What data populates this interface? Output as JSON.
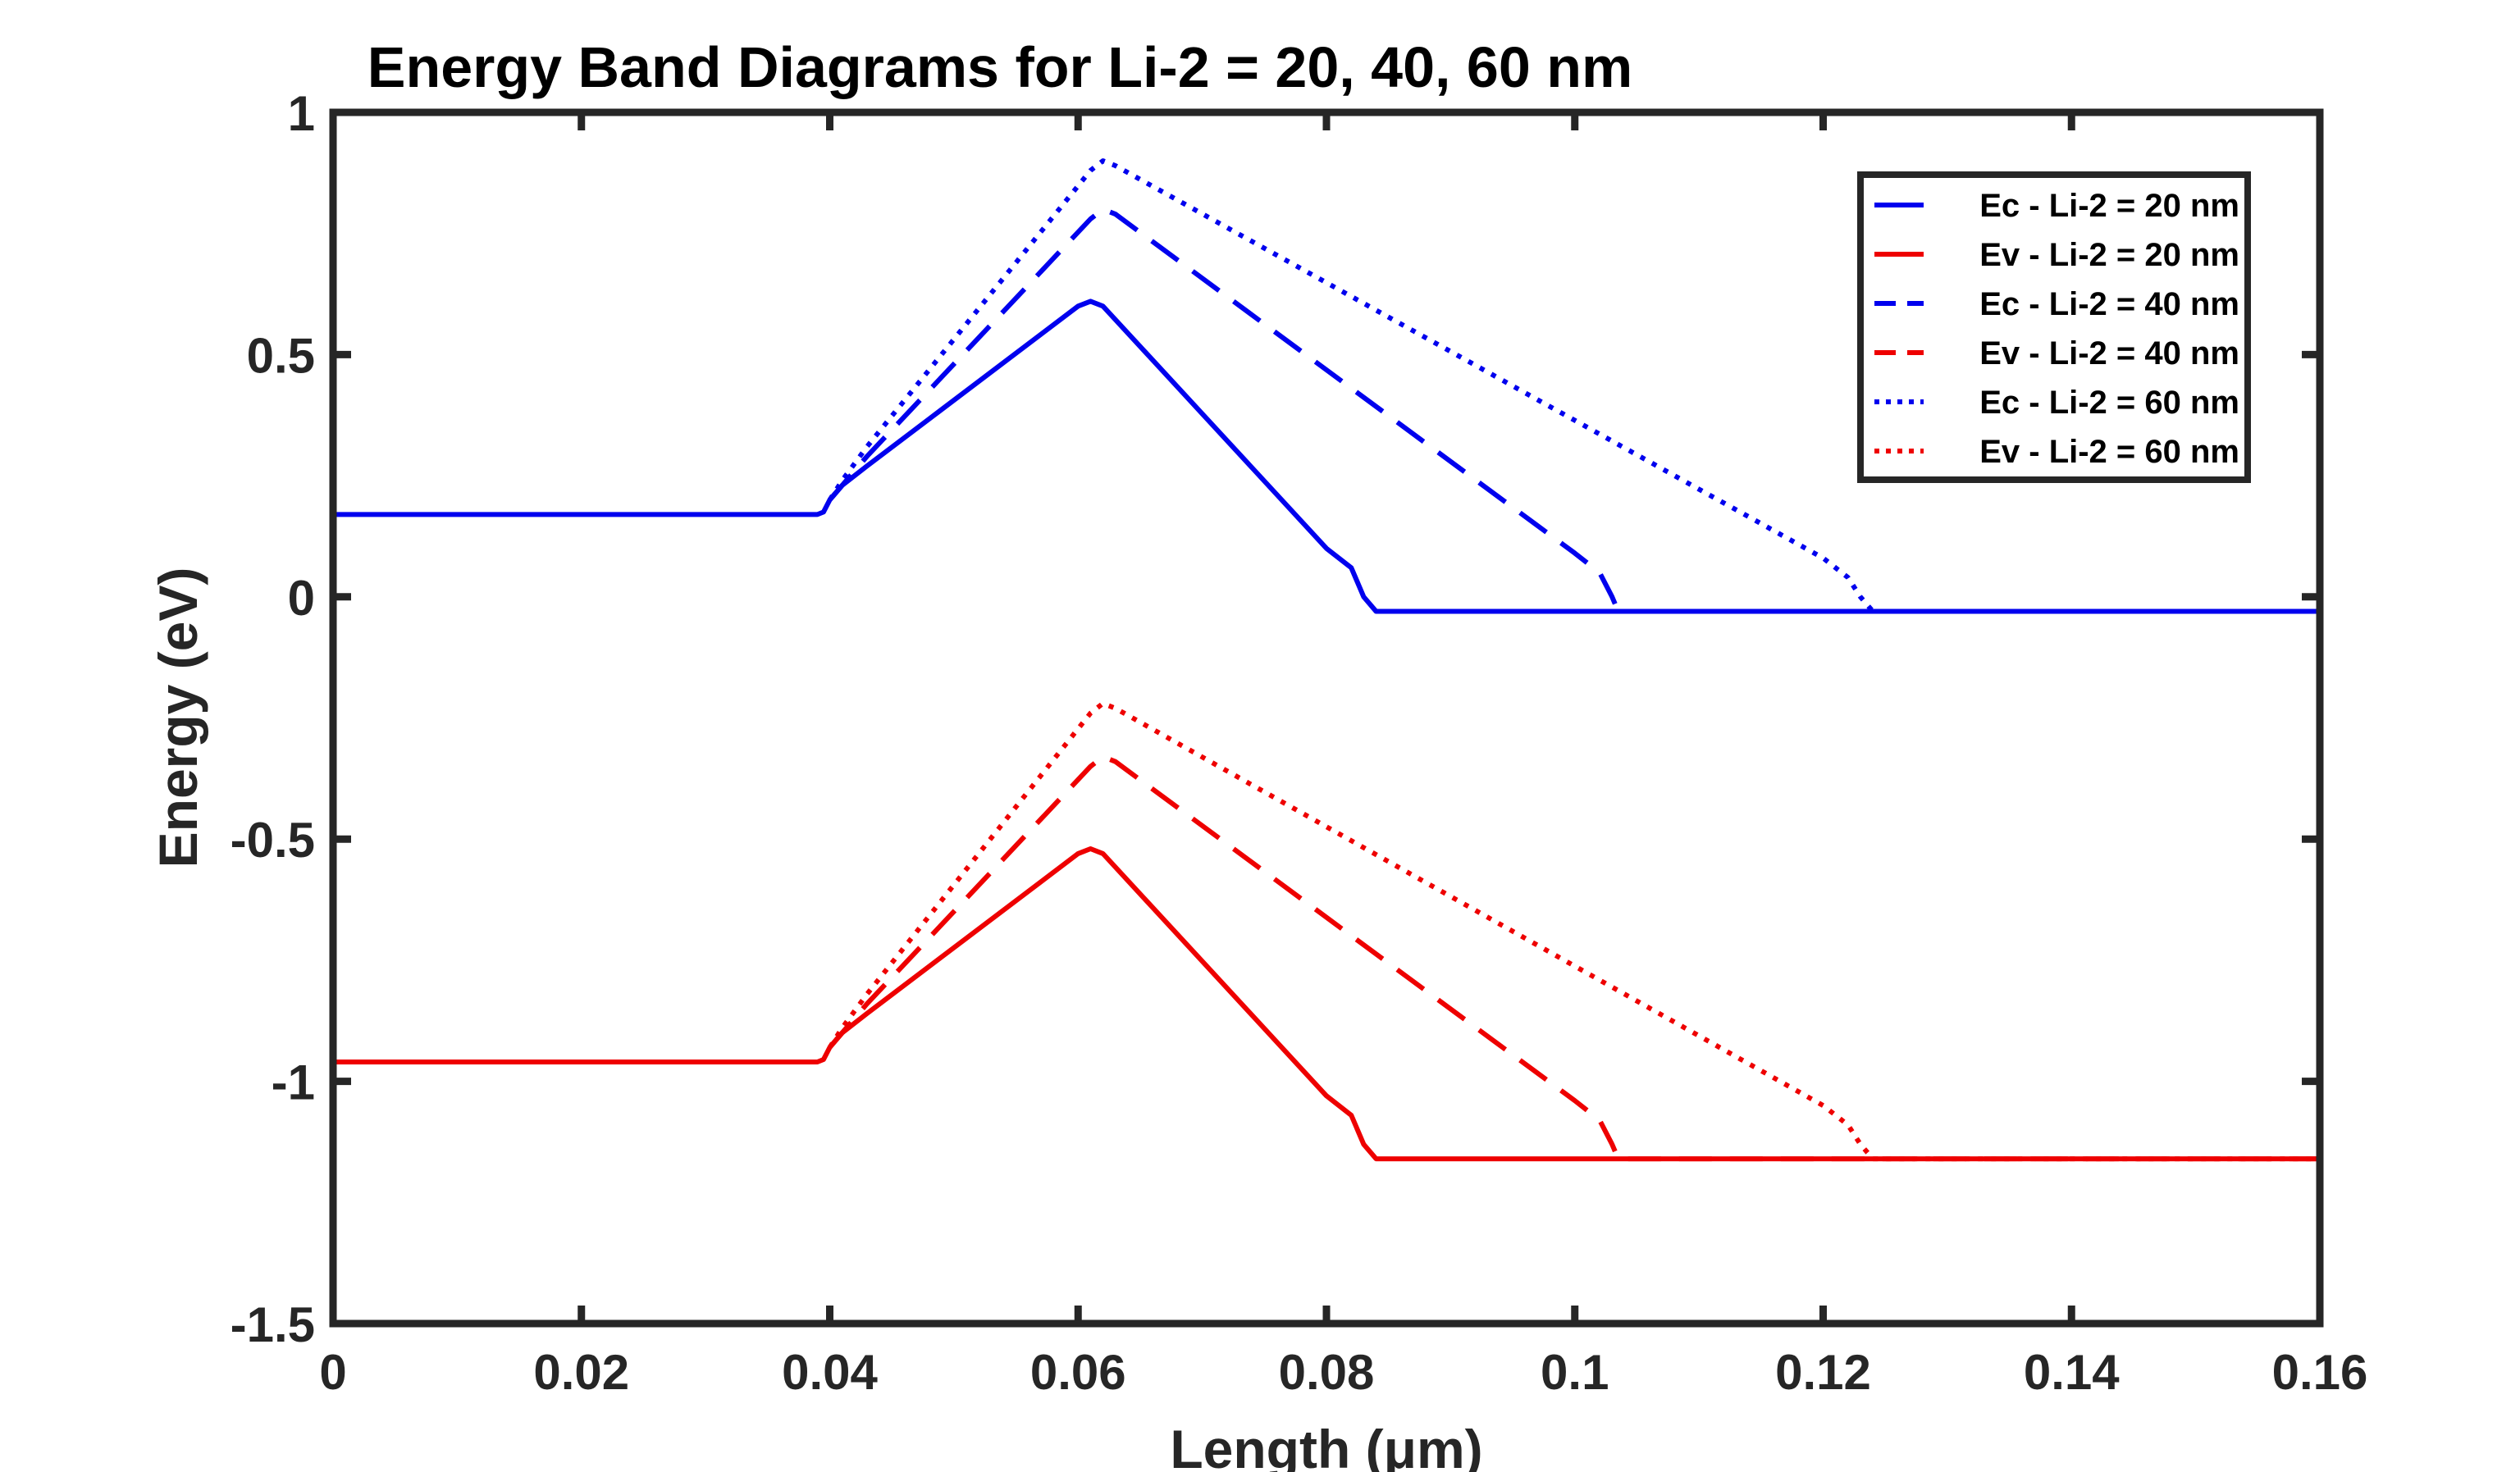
{
  "chart_data": {
    "type": "line",
    "title": "Energy Band Diagrams for Li-2 = 20, 40, 60 nm",
    "xlabel": "Length (μm)",
    "ylabel": "Energy (eV)",
    "xlim": [
      0,
      0.16
    ],
    "ylim": [
      -1.5,
      1
    ],
    "xticks": [
      0,
      0.02,
      0.04,
      0.06,
      0.08,
      0.1,
      0.12,
      0.14,
      0.16
    ],
    "xtick_labels": [
      "0",
      "0.02",
      "0.04",
      "0.06",
      "0.08",
      "0.1",
      "0.12",
      "0.14",
      "0.16"
    ],
    "yticks": [
      1,
      0.5,
      0,
      -0.5,
      -1,
      -1.5
    ],
    "ytick_labels": [
      "1",
      "0.5",
      "0",
      "-0.5",
      "-1",
      "-1.5"
    ],
    "grid": false,
    "legend_position": "top-right",
    "series": [
      {
        "name": "Ec - Li-2 = 20 nm",
        "color": "#0000ee",
        "style": "solid",
        "x": [
          0,
          0.039,
          0.0395,
          0.04,
          0.041,
          0.043,
          0.06,
          0.061,
          0.062,
          0.08,
          0.082,
          0.083,
          0.084,
          0.16
        ],
        "y": [
          0.17,
          0.17,
          0.175,
          0.2,
          0.23,
          0.27,
          0.6,
          0.61,
          0.6,
          0.1,
          0.06,
          0.0,
          -0.03,
          -0.03
        ]
      },
      {
        "name": "Ev - Li-2 = 20 nm",
        "color": "#ee0000",
        "style": "solid",
        "x": [
          0,
          0.039,
          0.0395,
          0.04,
          0.041,
          0.043,
          0.06,
          0.061,
          0.062,
          0.08,
          0.082,
          0.083,
          0.084,
          0.16
        ],
        "y": [
          -0.96,
          -0.96,
          -0.955,
          -0.93,
          -0.9,
          -0.86,
          -0.53,
          -0.52,
          -0.53,
          -1.03,
          -1.07,
          -1.13,
          -1.16,
          -1.16
        ]
      },
      {
        "name": "Ec - Li-2 = 40 nm",
        "color": "#0000ee",
        "style": "dashed",
        "x": [
          0.04,
          0.041,
          0.043,
          0.061,
          0.062,
          0.063,
          0.1,
          0.102,
          0.103,
          0.1035,
          0.16
        ],
        "y": [
          0.2,
          0.23,
          0.29,
          0.78,
          0.8,
          0.79,
          0.09,
          0.05,
          0.0,
          -0.03,
          -0.03
        ]
      },
      {
        "name": "Ev - Li-2 = 40 nm",
        "color": "#ee0000",
        "style": "dashed",
        "x": [
          0.04,
          0.041,
          0.043,
          0.061,
          0.062,
          0.063,
          0.1,
          0.102,
          0.103,
          0.1035,
          0.16
        ],
        "y": [
          -0.93,
          -0.9,
          -0.84,
          -0.35,
          -0.33,
          -0.34,
          -1.04,
          -1.08,
          -1.13,
          -1.16,
          -1.16
        ]
      },
      {
        "name": "Ec - Li-2 = 60 nm",
        "color": "#0000ee",
        "style": "dotted",
        "x": [
          0.04,
          0.041,
          0.043,
          0.061,
          0.062,
          0.063,
          0.12,
          0.122,
          0.123,
          0.124,
          0.16
        ],
        "y": [
          0.2,
          0.24,
          0.31,
          0.88,
          0.9,
          0.89,
          0.08,
          0.04,
          0.0,
          -0.03,
          -0.03
        ]
      },
      {
        "name": "Ev - Li-2 = 60 nm",
        "color": "#ee0000",
        "style": "dotted",
        "x": [
          0.04,
          0.041,
          0.043,
          0.061,
          0.062,
          0.063,
          0.12,
          0.122,
          0.123,
          0.124,
          0.16
        ],
        "y": [
          -0.93,
          -0.89,
          -0.82,
          -0.24,
          -0.22,
          -0.23,
          -1.05,
          -1.09,
          -1.13,
          -1.16,
          -1.16
        ]
      }
    ]
  }
}
